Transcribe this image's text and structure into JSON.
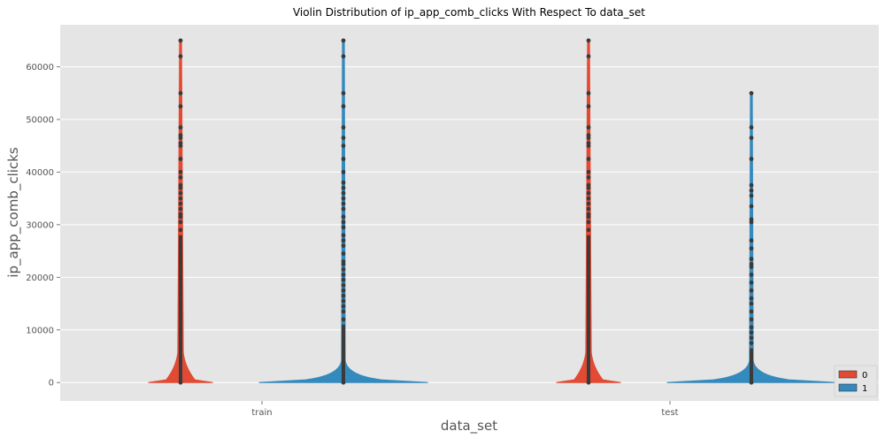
{
  "chart_data": {
    "type": "violin",
    "title": "Violin Distribution of ip_app_comb_clicks With Respect To data_set",
    "xlabel": "data_set",
    "ylabel": "ip_app_comb_clicks",
    "categories": [
      "train",
      "test"
    ],
    "ylim": [
      -3500,
      68000
    ],
    "yticks": [
      0,
      10000,
      20000,
      30000,
      40000,
      50000,
      60000
    ],
    "ytick_labels": [
      "0",
      "10000",
      "20000",
      "30000",
      "40000",
      "50000",
      "60000"
    ],
    "grid": true,
    "legend_position": "bottom-right",
    "series": [
      {
        "name": "0",
        "color": "#E24A33",
        "groups": [
          {
            "category": "train",
            "min": 0,
            "max": 65000,
            "dense_max": 28000,
            "outliers": [
              29000,
              30500,
              31500,
              32000,
              33000,
              34000,
              35000,
              36000,
              37000,
              37500,
              39000,
              40000,
              42500,
              45000,
              45500,
              46500,
              47000,
              48500,
              52500,
              55000,
              62000,
              65000
            ]
          },
          {
            "category": "test",
            "min": 0,
            "max": 65000,
            "dense_max": 28000,
            "outliers": [
              29000,
              30500,
              31500,
              32000,
              33000,
              34000,
              35000,
              36000,
              37000,
              37500,
              39000,
              40000,
              42500,
              45000,
              45500,
              46500,
              47000,
              48500,
              52500,
              55000,
              62000,
              65000
            ]
          }
        ]
      },
      {
        "name": "1",
        "color": "#348ABD",
        "groups": [
          {
            "category": "train",
            "min": 0,
            "max": 65000,
            "dense_max": 11000,
            "outliers": [
              12000,
              13500,
              14500,
              15500,
              16500,
              17500,
              18500,
              19500,
              20500,
              21500,
              22500,
              23000,
              24500,
              26000,
              27000,
              28000,
              29500,
              30500,
              31500,
              33000,
              34000,
              35000,
              36000,
              37000,
              38000,
              40000,
              42500,
              45000,
              46500,
              48500,
              52500,
              55000,
              62000,
              65000
            ]
          },
          {
            "category": "test",
            "min": 0,
            "max": 55000,
            "dense_max": 6500,
            "outliers": [
              7500,
              8500,
              9500,
              10500,
              12000,
              13500,
              15000,
              16000,
              17500,
              19000,
              20500,
              22000,
              22500,
              23500,
              25500,
              27000,
              30500,
              31000,
              33500,
              35500,
              36500,
              37500,
              42500,
              46500,
              48500,
              55000
            ]
          }
        ]
      }
    ]
  },
  "legend": {
    "items": [
      {
        "label": "0",
        "color": "#E24A33"
      },
      {
        "label": "1",
        "color": "#348ABD"
      }
    ]
  }
}
